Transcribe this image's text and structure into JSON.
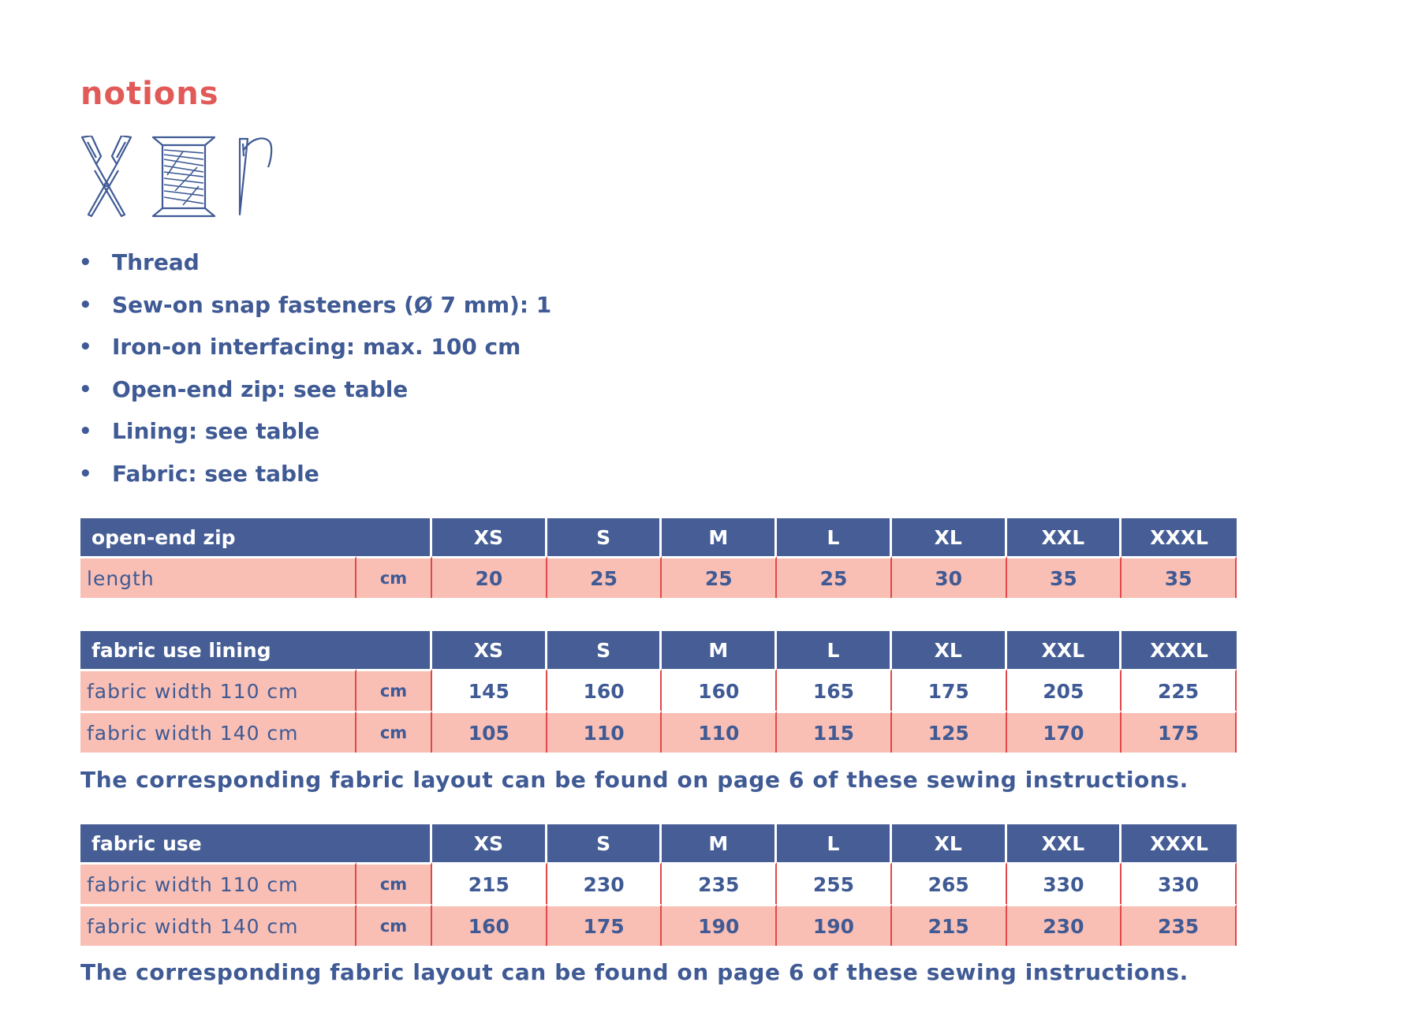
{
  "title": "notions",
  "icons": [
    "scissors-icon",
    "thread-spool-icon",
    "needle-icon"
  ],
  "notions_list": [
    "Thread",
    "Sew-on snap fasteners (Ø 7 mm): 1",
    "Iron-on interfacing: max. 100 cm",
    "Open-end zip: see table",
    "Lining: see table",
    "Fabric: see table"
  ],
  "sizes": [
    "XS",
    "S",
    "M",
    "L",
    "XL",
    "XXL",
    "XXXL"
  ],
  "zip_table": {
    "title": "open-end zip",
    "rows": [
      {
        "label": "length",
        "unit": "cm",
        "values": [
          "20",
          "25",
          "25",
          "25",
          "30",
          "35",
          "35"
        ]
      }
    ]
  },
  "lining_table": {
    "title": "fabric use lining",
    "rows": [
      {
        "label": "fabric width 110 cm",
        "unit": "cm",
        "values": [
          "145",
          "160",
          "160",
          "165",
          "175",
          "205",
          "225"
        ]
      },
      {
        "label": "fabric width 140 cm",
        "unit": "cm",
        "values": [
          "105",
          "110",
          "110",
          "115",
          "125",
          "170",
          "175"
        ]
      }
    ],
    "note": "The corresponding fabric layout can be found on page 6 of these sewing instructions."
  },
  "fabric_table": {
    "title": "fabric use",
    "rows": [
      {
        "label": "fabric width 110 cm",
        "unit": "cm",
        "values": [
          "215",
          "230",
          "235",
          "255",
          "265",
          "330",
          "330"
        ]
      },
      {
        "label": "fabric width 140 cm",
        "unit": "cm",
        "values": [
          "160",
          "175",
          "190",
          "190",
          "215",
          "230",
          "235"
        ]
      }
    ],
    "note": "The corresponding fabric layout can be found on page 6 of these sewing instructions."
  },
  "colors": {
    "accent": "#e25a58",
    "header": "#465e95",
    "text": "#3f5a94",
    "row_pink": "#f9bfb5",
    "divider": "#e2474a"
  }
}
